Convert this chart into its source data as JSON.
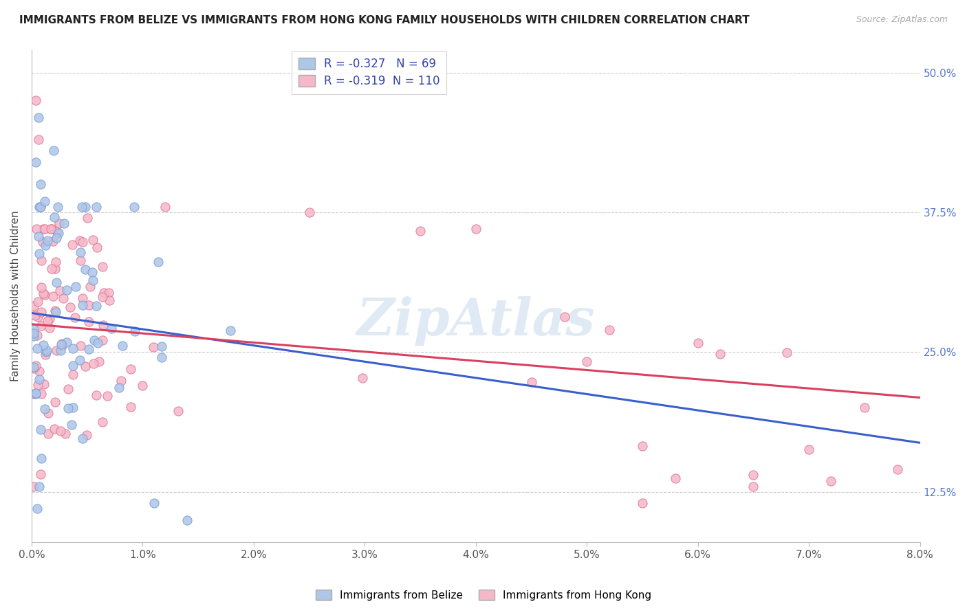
{
  "title": "IMMIGRANTS FROM BELIZE VS IMMIGRANTS FROM HONG KONG FAMILY HOUSEHOLDS WITH CHILDREN CORRELATION CHART",
  "source": "Source: ZipAtlas.com",
  "ylabel": "Family Households with Children",
  "x_min": 0.0,
  "x_max": 8.0,
  "y_min": 8.0,
  "y_max": 52.0,
  "x_ticks": [
    0.0,
    1.0,
    2.0,
    3.0,
    4.0,
    5.0,
    6.0,
    7.0,
    8.0
  ],
  "y_ticks": [
    12.5,
    25.0,
    37.5,
    50.0
  ],
  "belize_color": "#aec6e8",
  "belize_edge_color": "#7aa0d4",
  "hk_color": "#f5b8c8",
  "hk_edge_color": "#e07898",
  "belize_line_color": "#3a5fcd",
  "hk_line_color": "#d94060",
  "belize_R": -0.327,
  "belize_N": 69,
  "hk_R": -0.319,
  "hk_N": 110,
  "watermark": "ZipAtlas",
  "legend_labels": [
    "Immigrants from Belize",
    "Immigrants from Hong Kong"
  ],
  "belize_intercept": 28.5,
  "belize_slope": -1.45,
  "hk_intercept": 27.5,
  "hk_slope": -0.82
}
